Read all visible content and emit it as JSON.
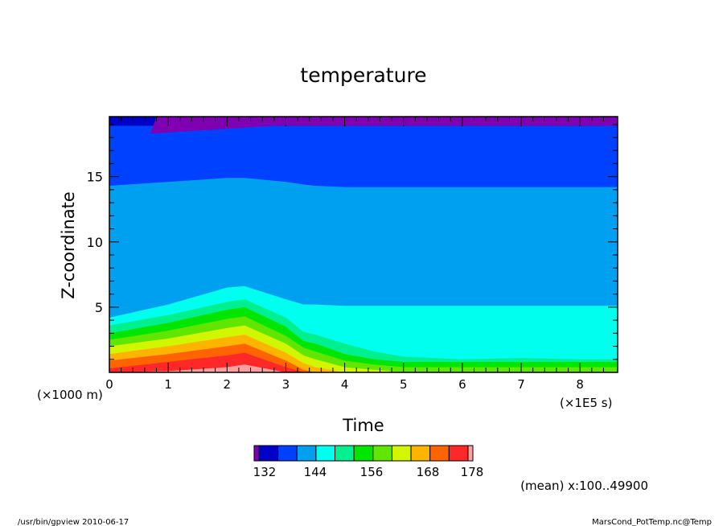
{
  "chart_data": {
    "type": "heatmap",
    "title": "temperature",
    "xlabel": "Time",
    "ylabel": "Z-coordinate",
    "x_unit_label": "(×1E5 s)",
    "y_unit_label": "(×1000 m)",
    "xlim": [
      0,
      8.64
    ],
    "ylim": [
      0,
      19.6
    ],
    "x_ticks": [
      "0",
      "1",
      "2",
      "3",
      "4",
      "5",
      "6",
      "7",
      "8"
    ],
    "x_tick_values": [
      0,
      1,
      2,
      3,
      4,
      5,
      6,
      7,
      8
    ],
    "y_ticks": [
      "5",
      "10",
      "15"
    ],
    "y_tick_values": [
      5,
      10,
      15
    ],
    "colorbar": {
      "labels": [
        "132",
        "144",
        "156",
        "168",
        "178"
      ],
      "colors": [
        "#7f00b3",
        "#0000c8",
        "#0040ff",
        "#00a0f0",
        "#00ffee",
        "#00f090",
        "#00e600",
        "#60e600",
        "#d2f500",
        "#ffb400",
        "#ff6400",
        "#ff2828",
        "#ffa0a0"
      ]
    },
    "x_profile": [
      0,
      1,
      2,
      2.3,
      3,
      3.3,
      3.5,
      4,
      4.5,
      5,
      6,
      7,
      8,
      8.64
    ],
    "contours": [
      {
        "color": "#0000c8",
        "z": [
          19.6,
          19.6,
          19.6,
          19.6,
          19.6,
          19.6,
          19.6,
          19.6,
          19.6,
          19.6,
          19.6,
          19.6,
          19.6,
          19.6
        ]
      },
      {
        "color": "#0040ff",
        "z": [
          18.9,
          18.9,
          18.9,
          18.9,
          18.9,
          18.9,
          18.9,
          18.9,
          18.9,
          18.9,
          18.9,
          18.9,
          18.9,
          18.9
        ]
      },
      {
        "color": "#00a0f0",
        "z": [
          14.3,
          14.6,
          14.9,
          14.9,
          14.6,
          14.4,
          14.3,
          14.2,
          14.2,
          14.2,
          14.2,
          14.2,
          14.2,
          14.2
        ]
      },
      {
        "color": "#00ffee",
        "z": [
          4.2,
          5.2,
          6.5,
          6.6,
          5.6,
          5.2,
          5.2,
          5.1,
          5.1,
          5.1,
          5.1,
          5.1,
          5.1,
          5.1
        ]
      },
      {
        "color": "#00f090",
        "z": [
          3.6,
          4.4,
          5.4,
          5.6,
          4.2,
          3.1,
          2.9,
          2.2,
          1.6,
          1.2,
          1.0,
          1.1,
          1.0,
          1.0
        ]
      },
      {
        "color": "#00e600",
        "z": [
          3.0,
          3.8,
          4.8,
          5.0,
          3.5,
          2.4,
          2.2,
          1.4,
          1.0,
          0.8,
          0.8,
          0.8,
          0.8,
          0.8
        ]
      },
      {
        "color": "#60e600",
        "z": [
          2.5,
          3.2,
          4.1,
          4.3,
          2.8,
          1.9,
          1.6,
          0.9,
          0.6,
          0.4,
          0.4,
          0.4,
          0.4,
          0.4
        ]
      },
      {
        "color": "#d2f500",
        "z": [
          2.0,
          2.6,
          3.4,
          3.6,
          2.2,
          1.3,
          1.0,
          0.4,
          0.2,
          0.0,
          0.0,
          0.0,
          0.0,
          0.0
        ]
      },
      {
        "color": "#ffb400",
        "z": [
          1.4,
          2.0,
          2.7,
          2.9,
          1.5,
          0.7,
          0.4,
          0.0,
          0.0,
          0.0,
          0.0,
          0.0,
          0.0,
          0.0
        ]
      },
      {
        "color": "#ff6400",
        "z": [
          0.9,
          1.4,
          2.0,
          2.2,
          0.9,
          0.2,
          0.0,
          0.0,
          0.0,
          0.0,
          0.0,
          0.0,
          0.0,
          0.0
        ]
      },
      {
        "color": "#ff2828",
        "z": [
          0.3,
          0.8,
          1.3,
          1.5,
          0.4,
          0.0,
          0.0,
          0.0,
          0.0,
          0.0,
          0.0,
          0.0,
          0.0,
          0.0
        ]
      },
      {
        "color": "#ffa0a0",
        "z": [
          0.0,
          0.1,
          0.4,
          0.6,
          0.0,
          0.0,
          0.0,
          0.0,
          0.0,
          0.0,
          0.0,
          0.0,
          0.0,
          0.0
        ]
      }
    ],
    "top_band": {
      "color": "#7f00b3",
      "x": [
        0.8,
        8.64
      ],
      "z_bottom": 18.9
    },
    "annotation": "(mean) x:100..49900",
    "footer_left": "/usr/bin/gpview  2010-06-17",
    "footer_right": "MarsCond_PotTemp.nc@Temp"
  }
}
